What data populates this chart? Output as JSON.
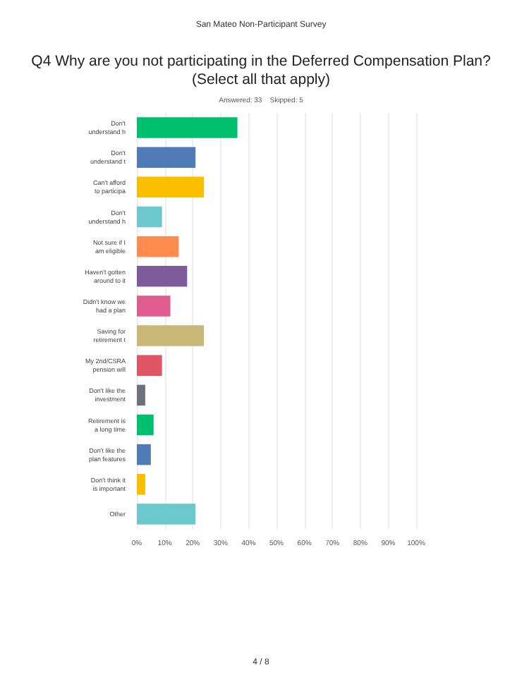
{
  "chart_data": {
    "type": "bar",
    "orientation": "horizontal",
    "title": "Q4 Why are you not participating in the Deferred Compensation Plan?\n(Select all that apply)",
    "subtitle": "Answered: 33    Skipped: 5",
    "annotations": [
      "San Mateo Non-Participant Survey",
      "4 / 8"
    ],
    "categories": [
      "Don't\nunderstand h",
      "Don't\nunderstand t",
      "Can't afford\nto participa",
      "Don't\nunderstand h",
      "Not sure if I\nam eligible",
      "Haven't gotten\naround to it",
      "Didn't know we\nhad a plan",
      "Saving for\nretirement t",
      "My 2nd/CSRA\npension will",
      "Don't like the\ninvestment",
      "Retirement is\na long time",
      "Don't like the\nplan features",
      "Don't think it\nis important",
      "Other"
    ],
    "values": [
      36,
      21,
      24,
      9,
      15,
      18,
      12,
      24,
      9,
      3,
      6,
      5,
      3,
      21
    ],
    "colors": [
      "#00bf6f",
      "#507cb6",
      "#f9be00",
      "#6bc8cd",
      "#ff8b4f",
      "#7d5b9b",
      "#e05b8e",
      "#c8b777",
      "#e05566",
      "#6d7278",
      "#00bf6f",
      "#507cb6",
      "#f9be00",
      "#6bc8cd"
    ],
    "xlim": [
      0,
      100
    ],
    "xticks": [
      {
        "value": 0,
        "label": "0%"
      },
      {
        "value": 10,
        "label": "10%"
      },
      {
        "value": 20,
        "label": "20%"
      },
      {
        "value": 30,
        "label": "30%"
      },
      {
        "value": 40,
        "label": "40%"
      },
      {
        "value": 50,
        "label": "50%"
      },
      {
        "value": 60,
        "label": "60%"
      },
      {
        "value": 70,
        "label": "70%"
      },
      {
        "value": 80,
        "label": "80%"
      },
      {
        "value": 90,
        "label": "90%"
      },
      {
        "value": 100,
        "label": "100%"
      }
    ],
    "grid": "x"
  }
}
